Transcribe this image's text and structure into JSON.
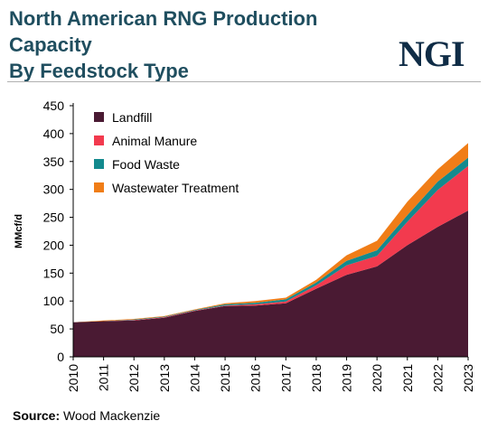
{
  "header": {
    "title_line1": "North American RNG Production Capacity",
    "title_line2": "By Feedstock Type",
    "logo_text": "NGI"
  },
  "footer": {
    "source_label": "Source:",
    "source_value": "Wood Mackenzie"
  },
  "chart_data": {
    "type": "area",
    "stacked": true,
    "title": "North American RNG Production Capacity By Feedstock Type",
    "xlabel": "",
    "ylabel": "MMcf/d",
    "ylim": [
      0,
      450
    ],
    "yticks": [
      0,
      50,
      100,
      150,
      200,
      250,
      300,
      350,
      400,
      450
    ],
    "x": [
      "2010",
      "2011",
      "2012",
      "2013",
      "2014",
      "2015",
      "2016",
      "2017",
      "2018",
      "2019",
      "2020",
      "2021",
      "2022",
      "2023"
    ],
    "legend_position": "top-left",
    "grid": false,
    "series": [
      {
        "name": "Landfill",
        "color": "#4a1a33",
        "values": [
          62,
          64,
          65,
          70,
          82,
          91,
          92,
          96,
          122,
          147,
          162,
          200,
          233,
          262
        ]
      },
      {
        "name": "Animal Manure",
        "color": "#f23a4e",
        "values": [
          0,
          0,
          1,
          1,
          1,
          1,
          2,
          3,
          6,
          17,
          19,
          42,
          66,
          80
        ]
      },
      {
        "name": "Food Waste",
        "color": "#138a8e",
        "values": [
          0,
          0,
          1,
          1,
          1,
          2,
          3,
          4,
          5,
          8,
          10,
          12,
          15,
          15
        ]
      },
      {
        "name": "Wastewater Treatment",
        "color": "#f07d17",
        "values": [
          0,
          1,
          1,
          1,
          1,
          2,
          3,
          3,
          5,
          10,
          17,
          24,
          22,
          26
        ]
      }
    ]
  }
}
